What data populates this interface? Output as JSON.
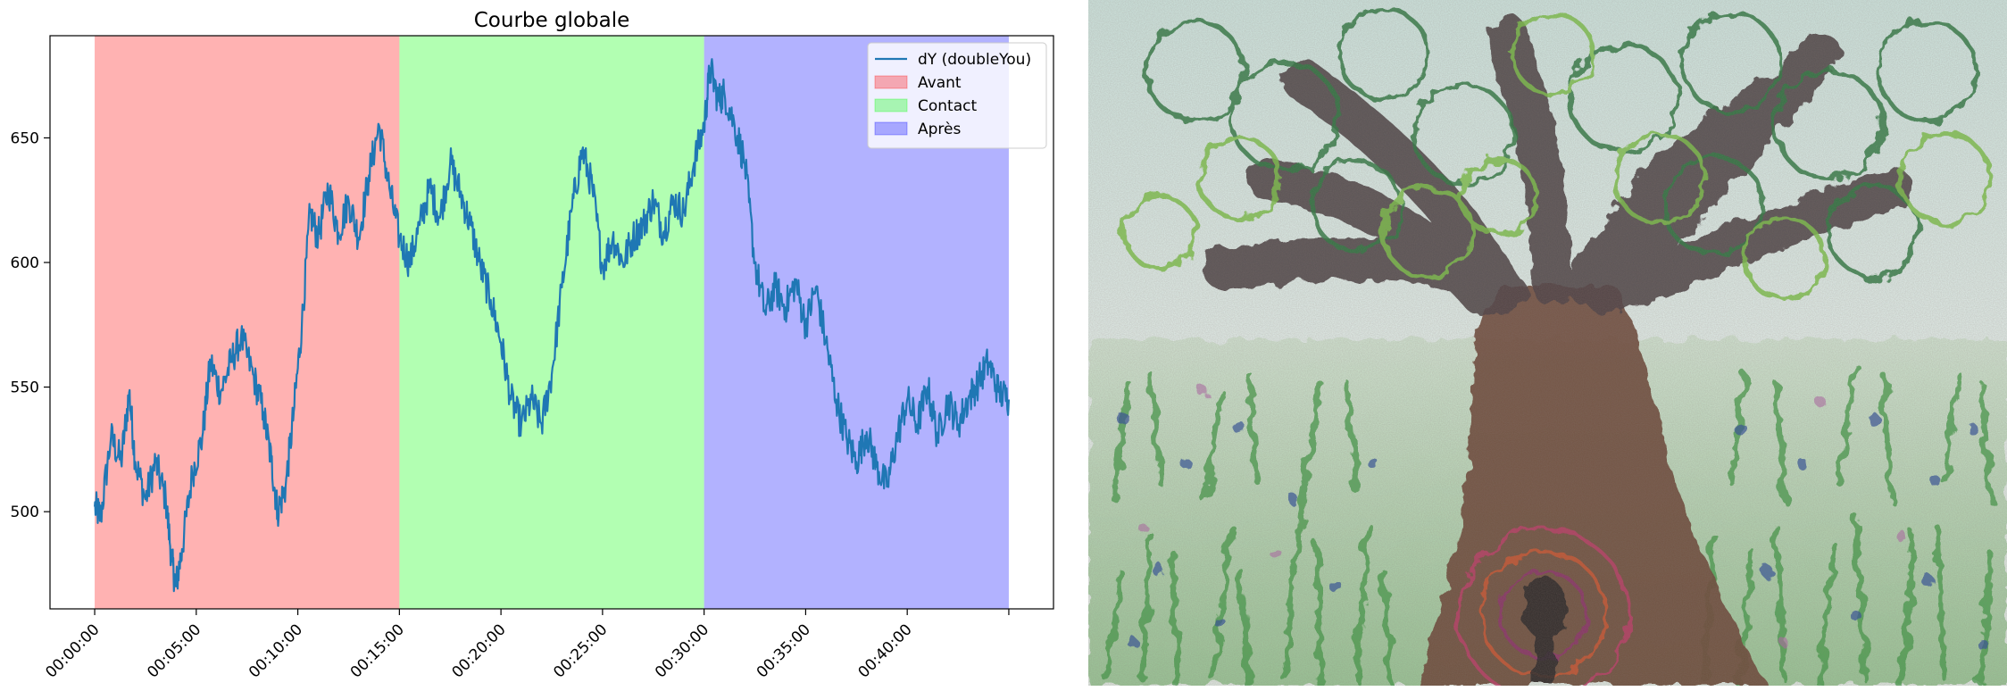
{
  "chart_data": {
    "type": "line",
    "title": "Courbe globale",
    "xlabel": "",
    "ylabel": "",
    "x_range_minutes": [
      -2.2,
      47.2
    ],
    "ylim": [
      461,
      691
    ],
    "grid": false,
    "legend_placement": "top-right",
    "y_ticks": [
      500,
      550,
      600,
      650
    ],
    "x_ticks": [
      {
        "minutes": 0,
        "label": "00:00:00"
      },
      {
        "minutes": 5,
        "label": "00:05:00"
      },
      {
        "minutes": 10,
        "label": "00:10:00"
      },
      {
        "minutes": 15,
        "label": "00:15:00"
      },
      {
        "minutes": 20,
        "label": "00:20:00"
      },
      {
        "minutes": 25,
        "label": "00:25:00"
      },
      {
        "minutes": 30,
        "label": "00:30:00"
      },
      {
        "minutes": 35,
        "label": "00:35:00"
      },
      {
        "minutes": 40,
        "label": "00:40:00"
      },
      {
        "minutes": 45,
        "label": ""
      }
    ],
    "spans": [
      {
        "name": "Avant",
        "start_minutes": 0,
        "end_minutes": 15,
        "color": "#ff0000"
      },
      {
        "name": "Contact",
        "start_minutes": 15,
        "end_minutes": 30,
        "color": "#00ff00"
      },
      {
        "name": "Après",
        "start_minutes": 30,
        "end_minutes": 45,
        "color": "#0000ff"
      }
    ],
    "series": [
      {
        "name": "dY (doubleYou)",
        "color": "#1f77b4",
        "x_minutes": [
          0,
          0.3,
          0.8,
          1.3,
          1.7,
          2.0,
          2.5,
          3.0,
          3.5,
          3.8,
          4.0,
          4.3,
          4.8,
          5.3,
          5.7,
          6.2,
          6.7,
          7.2,
          7.8,
          8.3,
          8.7,
          9.0,
          9.4,
          9.8,
          10.2,
          10.6,
          11.0,
          11.5,
          12.0,
          12.5,
          13.0,
          13.5,
          14.0,
          14.5,
          15.0,
          15.5,
          16.0,
          16.5,
          17.0,
          17.5,
          18.0,
          18.5,
          19.0,
          19.5,
          20.0,
          20.5,
          21.0,
          21.5,
          22.0,
          22.5,
          23.0,
          23.5,
          24.0,
          24.5,
          25.0,
          25.5,
          26.0,
          26.5,
          27.0,
          27.5,
          28.0,
          28.5,
          29.0,
          29.5,
          30.0,
          30.3,
          30.7,
          31.0,
          31.5,
          32.0,
          32.5,
          33.0,
          33.5,
          34.0,
          34.5,
          35.0,
          35.5,
          36.0,
          36.5,
          37.0,
          37.5,
          38.0,
          38.5,
          39.0,
          39.5,
          40.0,
          40.5,
          41.0,
          41.5,
          42.0,
          42.5,
          43.0,
          43.5,
          44.0,
          44.5,
          45.0
        ],
        "values": [
          502,
          498,
          530,
          520,
          548,
          520,
          505,
          520,
          505,
          480,
          470,
          485,
          515,
          530,
          560,
          548,
          560,
          570,
          555,
          540,
          520,
          500,
          510,
          540,
          575,
          620,
          610,
          630,
          612,
          625,
          610,
          635,
          655,
          630,
          610,
          600,
          615,
          630,
          618,
          640,
          628,
          615,
          598,
          585,
          568,
          545,
          535,
          545,
          535,
          555,
          590,
          622,
          645,
          630,
          598,
          610,
          600,
          610,
          615,
          625,
          612,
          625,
          620,
          640,
          655,
          678,
          665,
          668,
          655,
          640,
          600,
          580,
          590,
          582,
          592,
          575,
          590,
          568,
          545,
          530,
          520,
          532,
          518,
          510,
          530,
          545,
          535,
          550,
          530,
          545,
          535,
          545,
          552,
          560,
          548,
          545
        ]
      }
    ]
  },
  "painting": {
    "subject": "tree-painting"
  }
}
